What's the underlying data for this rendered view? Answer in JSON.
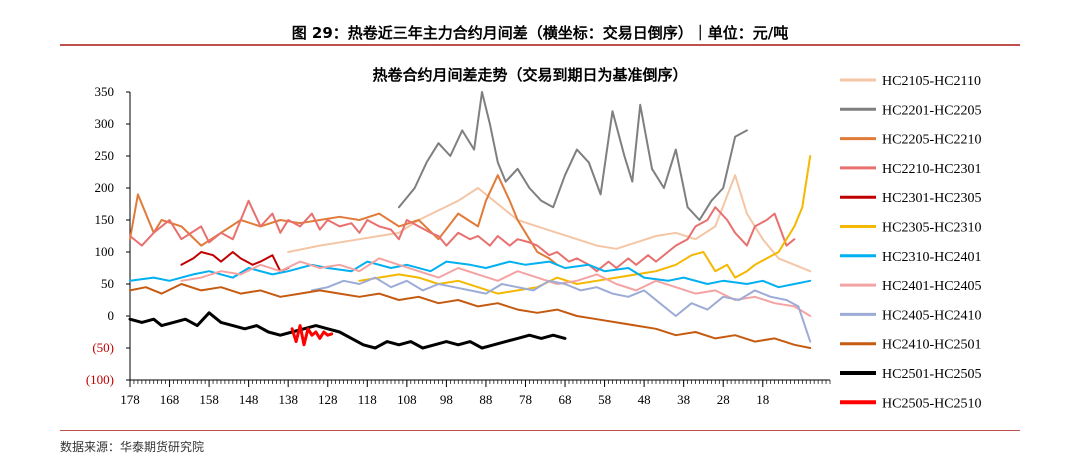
{
  "figure": {
    "caption": "图 29：热卷近三年主力合约月间差（横坐标：交易日倒序）｜单位：元/吨",
    "source": "数据来源：华泰期货研究院"
  },
  "chart_data": {
    "type": "line",
    "title": "热卷合约月间差走势（交易到期日为基准倒序）",
    "xlabel": "",
    "ylabel": "",
    "x_range": [
      178,
      1
    ],
    "x_ticks": [
      178,
      168,
      158,
      148,
      138,
      128,
      118,
      108,
      98,
      88,
      78,
      68,
      58,
      48,
      38,
      28,
      18
    ],
    "ylim": [
      -100,
      350
    ],
    "y_ticks": [
      {
        "value": 350,
        "label": "350"
      },
      {
        "value": 300,
        "label": "300"
      },
      {
        "value": 250,
        "label": "250"
      },
      {
        "value": 200,
        "label": "200"
      },
      {
        "value": 150,
        "label": "150"
      },
      {
        "value": 100,
        "label": "100"
      },
      {
        "value": 50,
        "label": "50"
      },
      {
        "value": 0,
        "label": "0"
      },
      {
        "value": -50,
        "label": "(50)"
      },
      {
        "value": -100,
        "label": "(100)"
      }
    ],
    "grid": false,
    "legend_position": "right",
    "series": [
      {
        "name": "HC2105-HC2110",
        "color": "#f4c6a5",
        "width": 2,
        "x": [
          138,
          130,
          120,
          110,
          105,
          100,
          95,
          90,
          85,
          80,
          75,
          70,
          65,
          60,
          55,
          50,
          45,
          40,
          35,
          30,
          25,
          22,
          18,
          14,
          10,
          6
        ],
        "y": [
          100,
          110,
          120,
          130,
          150,
          165,
          180,
          200,
          175,
          150,
          140,
          130,
          120,
          110,
          105,
          115,
          125,
          130,
          120,
          140,
          220,
          160,
          120,
          90,
          80,
          70
        ]
      },
      {
        "name": "HC2201-HC2205",
        "color": "#7f7f7f",
        "width": 2,
        "x": [
          110,
          106,
          103,
          100,
          97,
          94,
          91,
          89,
          87,
          85,
          83,
          80,
          77,
          74,
          71,
          68,
          65,
          62,
          59,
          56,
          53,
          51,
          49,
          46,
          43,
          40,
          37,
          34,
          31,
          28,
          25,
          22
        ],
        "y": [
          170,
          200,
          240,
          270,
          250,
          290,
          260,
          350,
          300,
          240,
          210,
          230,
          200,
          180,
          170,
          220,
          260,
          240,
          190,
          320,
          250,
          210,
          330,
          230,
          200,
          260,
          170,
          150,
          180,
          200,
          280,
          290
        ]
      },
      {
        "name": "HC2205-HC2210",
        "color": "#e07b39",
        "width": 2,
        "x": [
          178,
          176,
          174,
          172,
          170,
          165,
          160,
          155,
          150,
          145,
          140,
          135,
          130,
          125,
          120,
          115,
          110,
          105,
          100,
          95,
          90,
          88,
          85,
          82,
          80,
          78,
          75,
          72,
          70
        ],
        "y": [
          120,
          190,
          160,
          130,
          150,
          140,
          110,
          130,
          150,
          140,
          150,
          145,
          150,
          155,
          150,
          160,
          140,
          150,
          120,
          160,
          140,
          180,
          220,
          180,
          150,
          130,
          100,
          90,
          80
        ]
      },
      {
        "name": "HC2210-HC2301",
        "color": "#e8706f",
        "width": 2,
        "x": [
          178,
          175,
          172,
          168,
          165,
          160,
          158,
          155,
          152,
          150,
          148,
          145,
          142,
          140,
          138,
          135,
          132,
          130,
          128,
          125,
          122,
          120,
          118,
          115,
          112,
          110,
          108,
          105,
          102,
          100,
          98,
          95,
          92,
          90,
          87,
          85,
          82,
          80,
          77,
          75,
          72,
          70,
          67,
          65,
          62,
          60,
          57,
          55,
          52,
          50,
          47,
          45,
          42,
          40,
          37,
          35,
          32,
          30,
          27,
          25,
          22,
          20,
          17,
          15,
          12,
          10
        ],
        "y": [
          125,
          110,
          130,
          150,
          120,
          140,
          115,
          130,
          120,
          150,
          180,
          140,
          160,
          130,
          150,
          140,
          160,
          135,
          150,
          140,
          145,
          130,
          150,
          140,
          135,
          120,
          150,
          140,
          130,
          125,
          110,
          130,
          120,
          125,
          110,
          125,
          110,
          120,
          115,
          110,
          95,
          100,
          85,
          90,
          80,
          70,
          85,
          75,
          90,
          80,
          95,
          85,
          100,
          110,
          120,
          140,
          150,
          170,
          150,
          130,
          110,
          140,
          150,
          160,
          110,
          120
        ]
      },
      {
        "name": "HC2301-HC2305",
        "color": "#c00000",
        "width": 2,
        "x": [
          165,
          162,
          160,
          157,
          155,
          152,
          150,
          147,
          145,
          142,
          140,
          138
        ],
        "y": [
          80,
          90,
          100,
          95,
          85,
          100,
          90,
          80,
          85,
          95,
          70,
          75
        ]
      },
      {
        "name": "HC2305-HC2310",
        "color": "#f5b800",
        "width": 2,
        "x": [
          120,
          115,
          110,
          105,
          100,
          95,
          90,
          85,
          80,
          75,
          70,
          65,
          60,
          55,
          50,
          45,
          40,
          36,
          33,
          30,
          27,
          25,
          22,
          20,
          17,
          14,
          12,
          10,
          8,
          6
        ],
        "y": [
          55,
          60,
          65,
          60,
          50,
          55,
          45,
          35,
          40,
          45,
          60,
          50,
          55,
          60,
          65,
          70,
          80,
          95,
          100,
          70,
          80,
          60,
          70,
          80,
          90,
          100,
          120,
          140,
          170,
          250
        ]
      },
      {
        "name": "HC2310-HC2401",
        "color": "#00b0f0",
        "width": 2,
        "x": [
          178,
          172,
          168,
          162,
          158,
          152,
          148,
          142,
          138,
          132,
          128,
          122,
          118,
          112,
          108,
          102,
          98,
          92,
          88,
          82,
          78,
          72,
          68,
          62,
          58,
          52,
          48,
          42,
          38,
          32,
          28,
          22,
          18,
          14,
          10,
          6
        ],
        "y": [
          55,
          60,
          55,
          65,
          70,
          60,
          75,
          65,
          70,
          80,
          75,
          70,
          85,
          75,
          80,
          70,
          85,
          80,
          75,
          85,
          80,
          85,
          75,
          80,
          70,
          75,
          60,
          55,
          60,
          50,
          55,
          50,
          55,
          45,
          50,
          55
        ]
      },
      {
        "name": "HC2401-HC2405",
        "color": "#f4a3a3",
        "width": 2,
        "x": [
          165,
          160,
          155,
          150,
          145,
          140,
          135,
          130,
          125,
          120,
          115,
          110,
          105,
          100,
          95,
          90,
          85,
          80,
          75,
          70,
          65,
          60,
          55,
          50,
          45,
          40,
          35,
          30,
          25,
          20,
          15,
          10,
          6
        ],
        "y": [
          55,
          60,
          70,
          65,
          80,
          70,
          85,
          75,
          80,
          70,
          90,
          80,
          70,
          60,
          75,
          65,
          55,
          70,
          60,
          50,
          55,
          65,
          50,
          40,
          55,
          45,
          35,
          40,
          25,
          30,
          20,
          15,
          0
        ]
      },
      {
        "name": "HC2405-HC2410",
        "color": "#9dacd6",
        "width": 2,
        "x": [
          132,
          128,
          124,
          120,
          116,
          112,
          108,
          104,
          100,
          96,
          92,
          88,
          84,
          80,
          76,
          72,
          68,
          64,
          60,
          56,
          52,
          48,
          44,
          40,
          36,
          32,
          28,
          24,
          20,
          16,
          12,
          9,
          6
        ],
        "y": [
          40,
          45,
          55,
          50,
          60,
          45,
          55,
          40,
          50,
          45,
          40,
          35,
          50,
          45,
          40,
          55,
          50,
          40,
          45,
          35,
          30,
          40,
          20,
          0,
          20,
          10,
          30,
          25,
          40,
          30,
          25,
          15,
          -40
        ]
      },
      {
        "name": "HC2410-HC2501",
        "color": "#c55a11",
        "width": 2,
        "x": [
          178,
          174,
          170,
          165,
          160,
          155,
          150,
          145,
          140,
          135,
          130,
          125,
          120,
          115,
          110,
          105,
          100,
          95,
          90,
          85,
          80,
          75,
          70,
          65,
          60,
          55,
          50,
          45,
          40,
          35,
          30,
          25,
          20,
          15,
          10,
          6
        ],
        "y": [
          40,
          45,
          35,
          50,
          40,
          45,
          35,
          40,
          30,
          35,
          40,
          35,
          30,
          35,
          25,
          30,
          20,
          25,
          15,
          20,
          10,
          5,
          10,
          0,
          -5,
          -10,
          -15,
          -20,
          -30,
          -25,
          -35,
          -30,
          -40,
          -35,
          -45,
          -50
        ]
      },
      {
        "name": "HC2501-HC2505",
        "color": "#000000",
        "width": 3,
        "x": [
          178,
          175,
          172,
          170,
          167,
          164,
          161,
          158,
          155,
          152,
          149,
          146,
          143,
          140,
          137,
          134,
          131,
          128,
          125,
          122,
          119,
          116,
          113,
          110,
          107,
          104,
          101,
          98,
          95,
          92,
          89,
          86,
          83,
          80,
          77,
          74,
          71,
          68
        ],
        "y": [
          -5,
          -10,
          -5,
          -15,
          -10,
          -5,
          -15,
          5,
          -10,
          -15,
          -20,
          -15,
          -25,
          -30,
          -25,
          -20,
          -15,
          -20,
          -25,
          -35,
          -45,
          -50,
          -40,
          -45,
          -40,
          -50,
          -45,
          -40,
          -45,
          -40,
          -50,
          -45,
          -40,
          -35,
          -30,
          -35,
          -30,
          -35
        ]
      },
      {
        "name": "HC2505-HC2510",
        "color": "#ff0000",
        "width": 3,
        "x": [
          137,
          136,
          135,
          134,
          133,
          132,
          131,
          130,
          129,
          128,
          127
        ],
        "y": [
          -20,
          -40,
          -15,
          -45,
          -20,
          -30,
          -25,
          -35,
          -25,
          -30,
          -28
        ]
      }
    ]
  }
}
